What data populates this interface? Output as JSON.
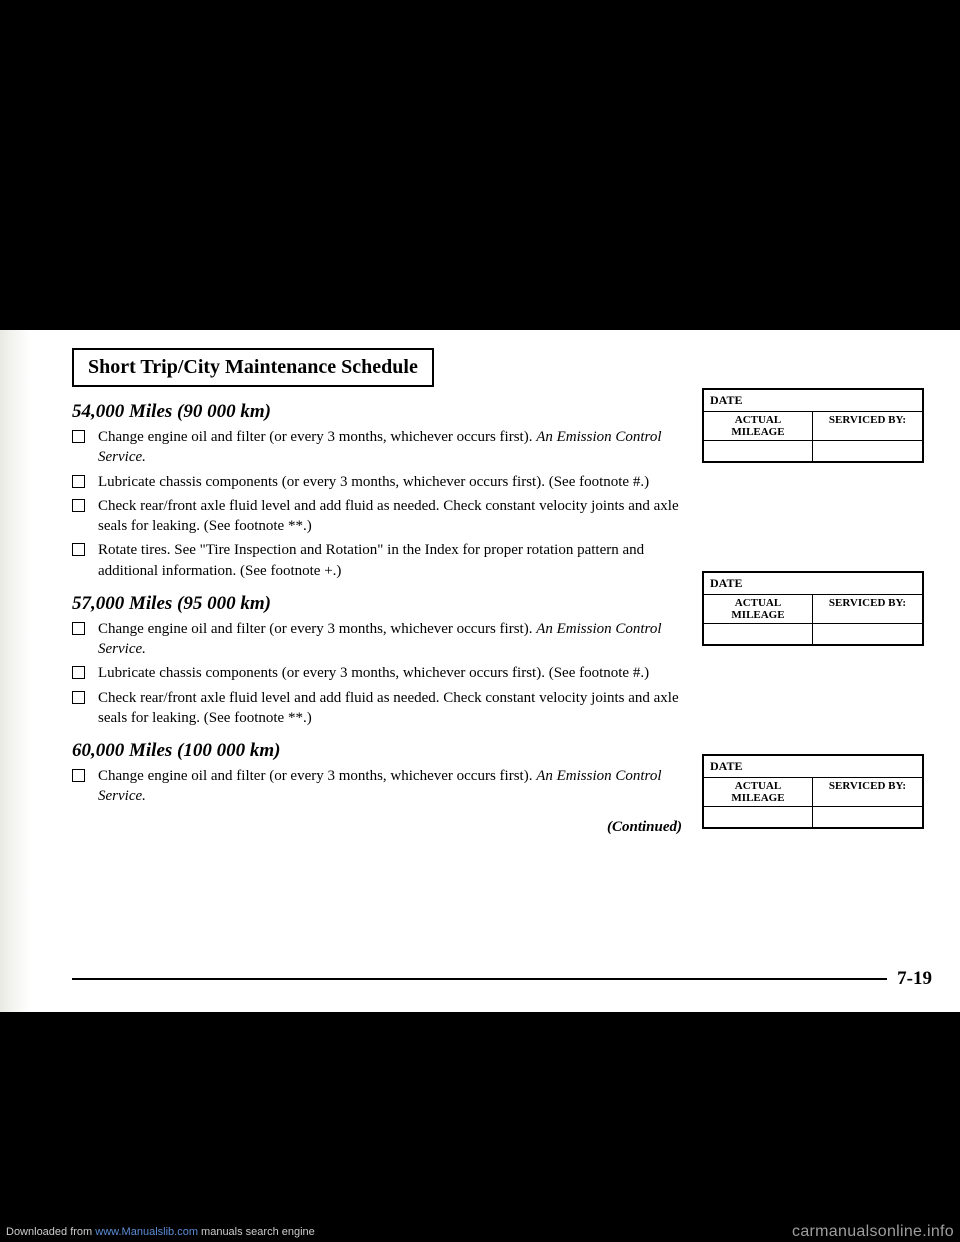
{
  "title": "Short Trip/City Maintenance Schedule",
  "sections": [
    {
      "heading": "54,000 Miles (90 000 km)",
      "items": [
        {
          "text": "Change engine oil and filter (or every 3 months, whichever occurs first).",
          "note": "An Emission Control Service."
        },
        {
          "text": "Lubricate chassis components (or every 3 months, whichever occurs first). (See footnote #.)"
        },
        {
          "text": "Check rear/front axle fluid level and add fluid as needed. Check constant velocity joints and axle seals for leaking. (See footnote **.)"
        },
        {
          "text": "Rotate tires. See \"Tire Inspection and Rotation\" in the Index for proper rotation pattern and additional information. (See footnote +.)"
        }
      ]
    },
    {
      "heading": "57,000 Miles (95 000 km)",
      "items": [
        {
          "text": "Change engine oil and filter (or every 3 months, whichever occurs first).",
          "note": "An Emission Control Service."
        },
        {
          "text": "Lubricate chassis components (or every 3 months, whichever occurs first). (See footnote #.)"
        },
        {
          "text": "Check rear/front axle fluid level and add fluid as needed. Check constant velocity joints and axle seals for leaking. (See footnote **.)"
        }
      ]
    },
    {
      "heading": "60,000 Miles (100 000 km)",
      "items": [
        {
          "text": "Change engine oil and filter (or every 3 months, whichever occurs first).",
          "note": "An Emission Control Service."
        }
      ]
    }
  ],
  "continued": "(Continued)",
  "recordBox": {
    "date": "DATE",
    "mileage": "ACTUAL MILEAGE",
    "serviced": "SERVICED BY:"
  },
  "pageNumber": "7-19",
  "footer": {
    "leftPrefix": "Downloaded from ",
    "leftLink": "www.Manualslib.com",
    "leftSuffix": " manuals search engine",
    "right": "carmanualsonline.info"
  }
}
